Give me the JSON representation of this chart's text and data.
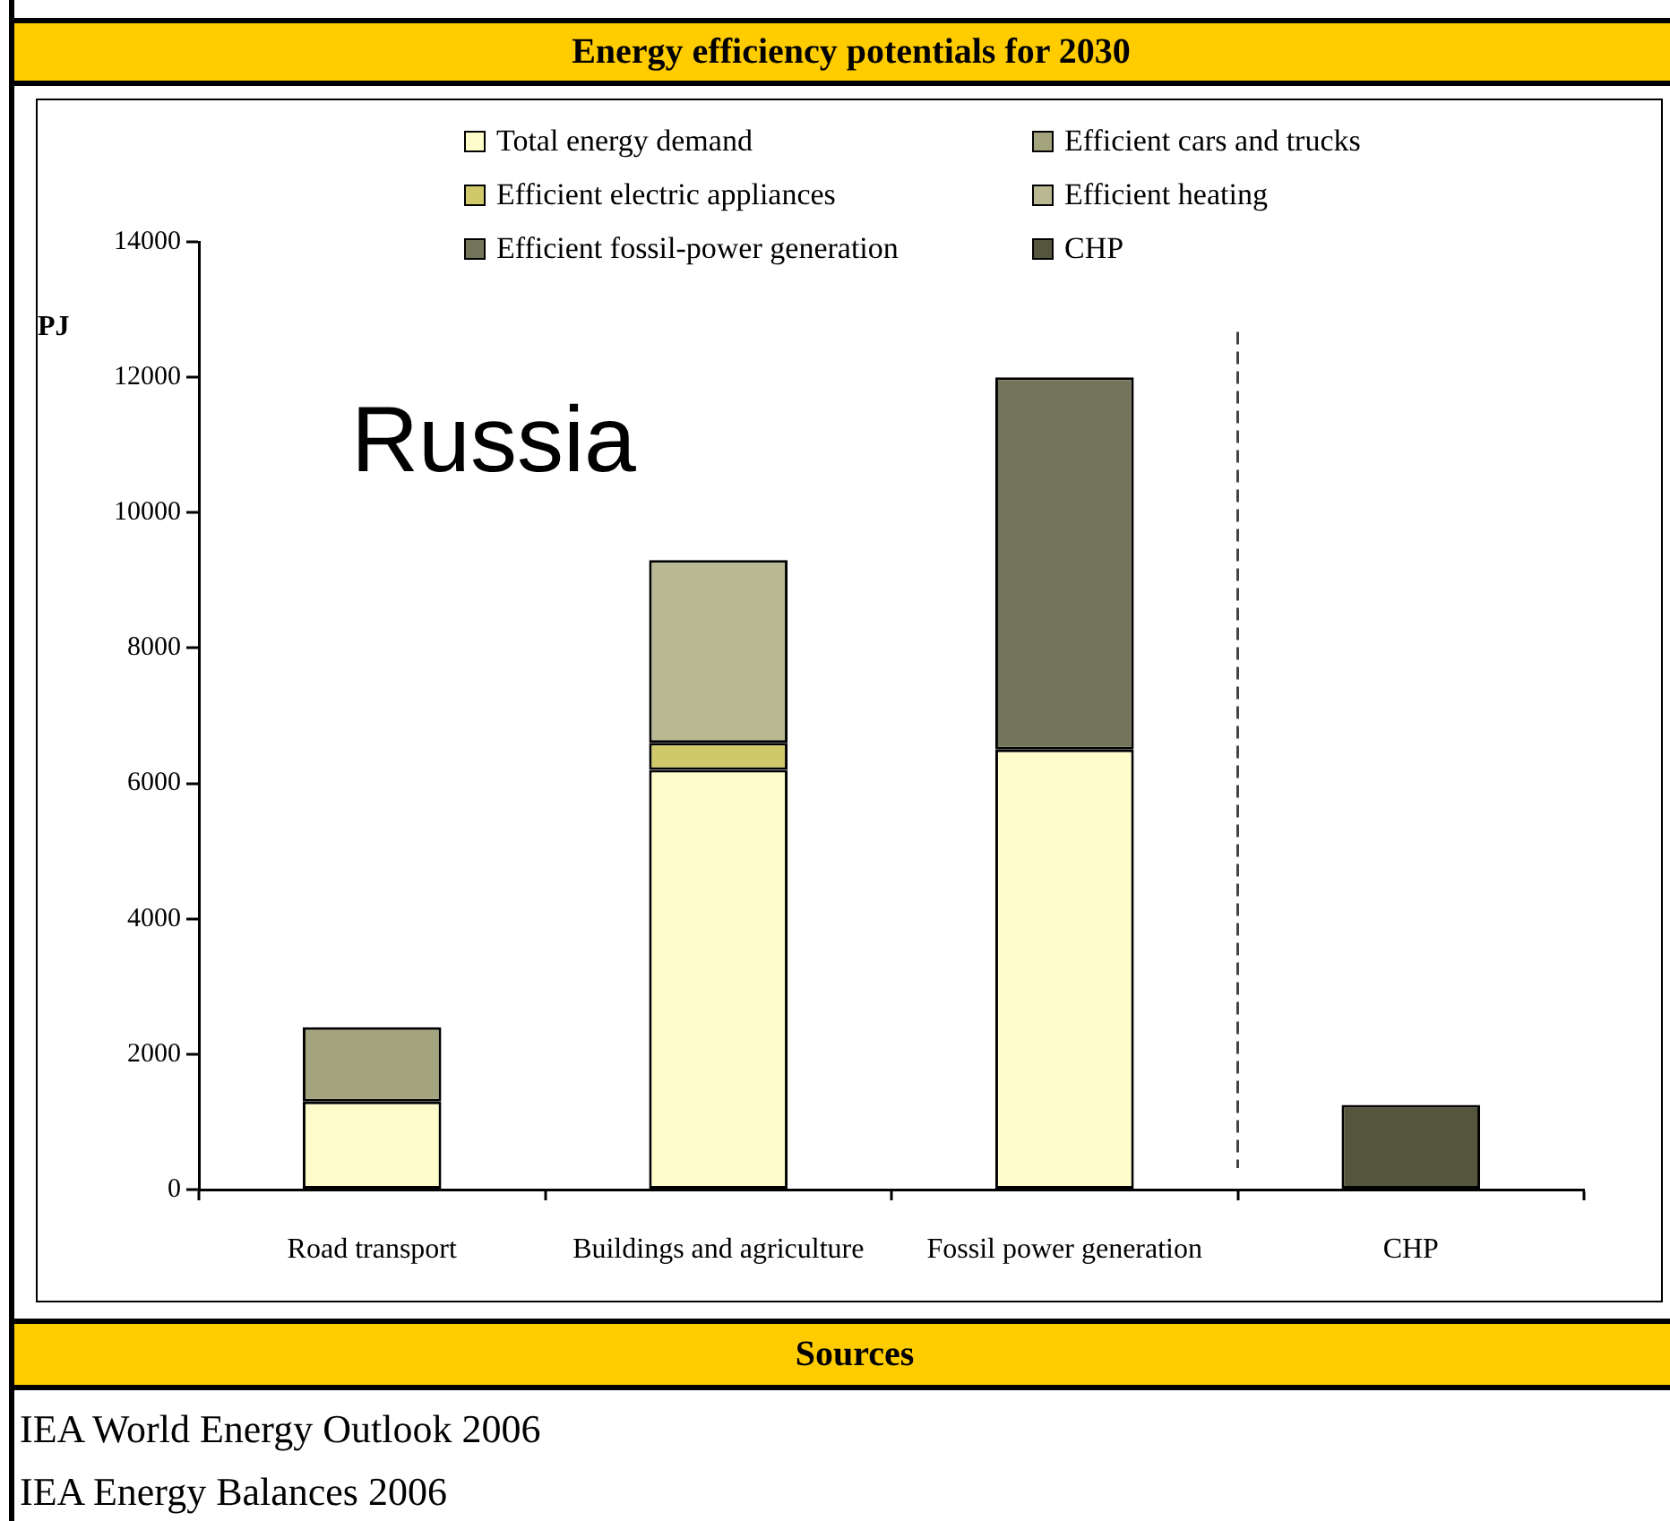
{
  "chart_data": {
    "type": "bar",
    "title": "Energy efficiency potentials for 2030",
    "ylabel": "PJ",
    "categories": [
      "Road transport",
      "Buildings and agriculture",
      "Fossil power generation",
      "CHP"
    ],
    "series": [
      {
        "name": "Total energy demand",
        "color": "#fffccc",
        "values": [
          1300,
          6200,
          6500,
          null
        ]
      },
      {
        "name": "Efficient cars and trucks",
        "color": "#a3a37e",
        "values": [
          1100,
          null,
          null,
          null
        ]
      },
      {
        "name": "Efficient electric appliances",
        "color": "#cfc96a",
        "values": [
          null,
          400,
          null,
          null
        ]
      },
      {
        "name": "Efficient heating",
        "color": "#b9b893",
        "values": [
          null,
          2700,
          null,
          null
        ]
      },
      {
        "name": "Efficient fossil-power generation",
        "color": "#74745a",
        "values": [
          null,
          null,
          5500,
          null
        ]
      },
      {
        "name": "CHP",
        "color": "#55553d",
        "values": [
          null,
          null,
          null,
          1250
        ]
      }
    ],
    "stacked": true,
    "ylim": [
      0,
      14000
    ],
    "yticks": [
      0,
      2000,
      4000,
      6000,
      8000,
      10000,
      12000,
      14000
    ],
    "grid": false,
    "legend": "top",
    "annotations": [
      "Russia",
      "Sources",
      "IEA World Energy Outlook 2006",
      "IEA Energy Balances 2006"
    ]
  }
}
